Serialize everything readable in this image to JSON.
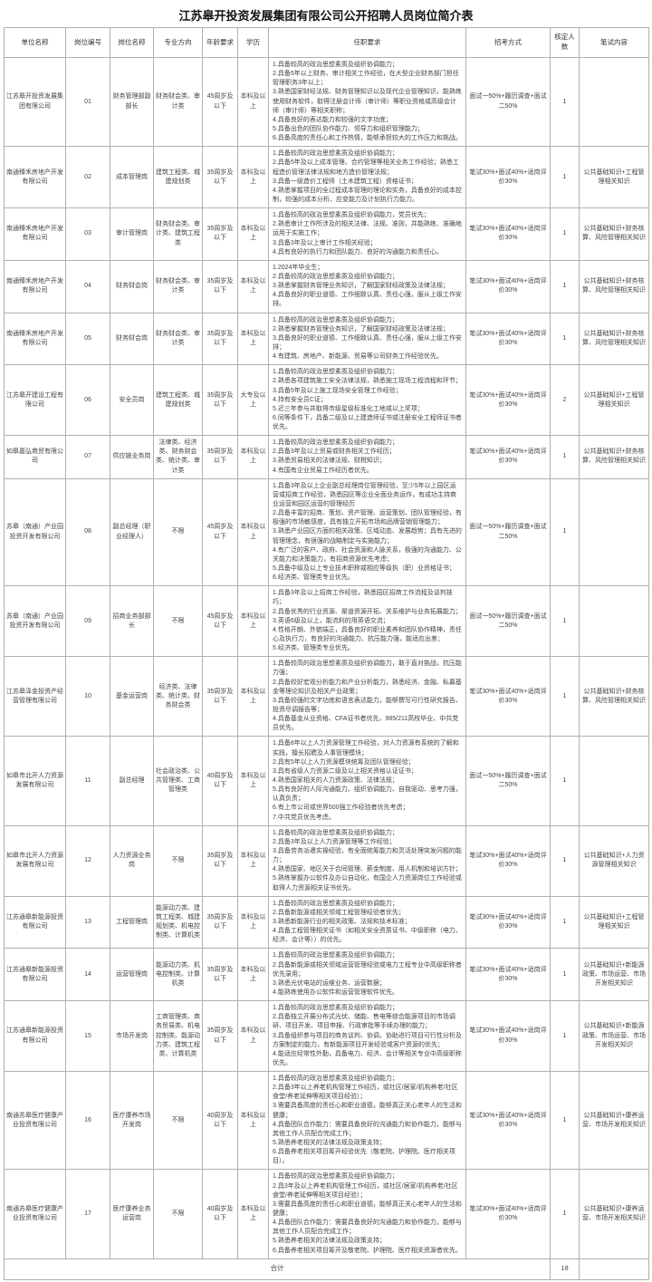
{
  "title": "江苏皋开投资发展集团有限公司公开招聘人员岗位简介表",
  "columns": [
    "单位名称",
    "岗位编号",
    "岗位名称",
    "专业方向",
    "年龄要求",
    "学历",
    "任职要求",
    "招考方式",
    "核定人数",
    "笔试内容"
  ],
  "rows": [
    {
      "company": "江苏皋开投资发展集团有限公司",
      "code": "01",
      "position": "财务管理部副部长",
      "major": "财务财会类、审计类",
      "age": "45周岁及以下",
      "education": "本科及以上",
      "requirements": "1.具备较高的政治思想素质及组织协调能力；\n2.具备5年以上财务、审计相关工作经验，在大型企业财务部门担任管理职务3年以上；\n3.熟悉国家财经法规、财务管理知识以及现代企业管理知识，能熟练使用财务软件，取得注册会计师（审计师）等职业资格或高级会计师（审计师）等相关职称；\n4.具备良好的表达能力和较强的文字功底；\n5.具备出色的团队协作能力、领导力和组织管理能力；\n6.具备高度的责任心和工作热情，能够承担较大的工作压力和挑战。",
      "method": "面试一50%+履历调查+面试二50%",
      "count": "1",
      "exam": ""
    },
    {
      "company": "南通臻禾房地产开发有限公司",
      "code": "02",
      "position": "成本管理岗",
      "major": "建筑工程类、城建规划类",
      "age": "35周岁及以下",
      "education": "本科及以上",
      "requirements": "1.具备较高的政治思想素质及组织协调能力；\n2.具备5年及以上成本管理、合约管理等相关业务工作经验；熟悉工程造价管理法律法规和地方造价管理法规；\n3.具备一级造价工程师（土木建筑工程）资格证书；\n4.熟悉掌握项目的全过程成本管理的理论和实务，具备良好的成本控制，较强的成本分析、应变能力及计划执行力能力。",
      "method": "笔试30%+面试40%+适岗评价30%",
      "count": "1",
      "exam": "公共基础知识+工程管理相关知识"
    },
    {
      "company": "南通臻禾房地产开发有限公司",
      "code": "03",
      "position": "审计管理岗",
      "major": "财务财会类、审计类、建筑工程类",
      "age": "35周岁及以下",
      "education": "本科及以上",
      "requirements": "1.具备较高的政治思想素质及组织协调能力，党员优先；\n2.熟悉审计工作所涉及的相关法律、法规、准则，并能熟练、准确地运用于实施工作；\n3.具备3年及以上审计工作相关经验；\n4.具有良好的执行力和团队能力、良好的沟通能力和责任心。",
      "method": "笔试30%+面试40%+适岗评价30%",
      "count": "1",
      "exam": "公共基础知识+财务核算、风险管理相关知识"
    },
    {
      "company": "南通臻禾房地产开发有限公司",
      "code": "04",
      "position": "财务财会岗",
      "major": "财务财会类、审计类",
      "age": "35周岁及以下",
      "education": "本科及以上",
      "requirements": "1.2024年毕业生；\n2.具备较高的政治思想素质及组织协调能力；\n3.熟悉掌握财务管理业务知识，了解国家财经政策及法律法规；\n4.具备良好的职业道德、工作细致认真、责任心强，服从上级工作安排。",
      "method": "笔试30%+面试40%+适岗评价30%",
      "count": "1",
      "exam": "公共基础知识+财务核算、风险管理相关知识"
    },
    {
      "company": "南通臻禾房地产开发有限公司",
      "code": "05",
      "position": "财务财会岗",
      "major": "财务财会类、审计类",
      "age": "35周岁及以下",
      "education": "本科及以上",
      "requirements": "1.具备较高的政治思想素质及组织协调能力；\n2.熟悉掌握财务管理业务知识，了解国家财经政策及法律法规；\n3.具备良好的职业道德、工作细致认真、责任心强，服从上级工作安排；\n4.有建筑、房地产、新能源、贸易等公司财务工作经验优先。",
      "method": "笔试30%+面试40%+适岗评价30%",
      "count": "1",
      "exam": "公共基础知识+财务核算、风险管理相关知识"
    },
    {
      "company": "江苏皋开建设工程有限公司",
      "code": "06",
      "position": "安全员岗",
      "major": "建筑工程类、城建规划类",
      "age": "35周岁及以下",
      "education": "大专及以上",
      "requirements": "1.具备较高的政治思想素质及组织协调能力；\n2.熟悉各项建筑施工安全法律法规，熟悉施工现场工程流程和环节；\n3.具备5年及以上施工现场安全管理工作经验；\n4.持有安全员C证；\n5.近三年参与并取得市级星级标准化工地或以上奖项；\n6.同等条件下，具备二级及以上建造师证书或注册安全工程师证书者优先。",
      "method": "笔试30%+面试40%+适岗评价30%",
      "count": "2",
      "exam": "公共基础知识+工程管理相关知识"
    },
    {
      "company": "如皋嘉弘商贸有限公司",
      "code": "07",
      "position": "供应链业务岗",
      "major": "法律类、经济类、财务财会类、统计类、审计类",
      "age": "35周岁及以下",
      "education": "本科及以上",
      "requirements": "1.具备较高的政治思想素质及组织协调能力；\n2.具备3年及以上贸易或财务相关工作经历；\n3.熟悉贸易相关的法律法规、财税知识；\n4.有国有企业贸易工作经历者优先。",
      "method": "笔试30%+面试40%+适岗评价30%",
      "count": "1",
      "exam": "公共基础知识+财务核算、风险管理相关知识"
    },
    {
      "company": "苏皋（南通）产业园投资开发有限公司",
      "code": "08",
      "position": "副总经理（职业经理人）",
      "major": "不限",
      "age": "45周岁及以下",
      "education": "本科及以上",
      "requirements": "1.具备3年及以上企业副总经理岗位管理经验，至少5年以上园区运营或招商工作经验，熟悉园区等企业全面业务运作，有成功主持商业运营和园区运营的管理经历\n2.具备丰富的招商、策划、资产管理、运营策划、团队管理经验，有极强的市场敏感度，具有独立开拓市场和品牌营销管理能力；\n3.熟悉产业园区方面的相关政策、区域动态、发展趋势；具有先进的管理理念，有很强的战略制定与实施能力；\n4.有广泛的客户、政府、社会资源和人脉关系，极强的沟通能力、公关能力和决策能力，有招商资源优先考虑；\n5.具备中级及以上专业技术职称或相应等级执（职）业资格证书；\n6.经济类、管理类专业优先。",
      "method": "面试一50%+履历调查+面试二50%",
      "count": "1",
      "exam": ""
    },
    {
      "company": "苏皋（南通）产业园投资开发有限公司",
      "code": "09",
      "position": "招商业务部部长",
      "major": "不限",
      "age": "45周岁及以下",
      "education": "本科及以上",
      "requirements": "1.具备3年及以上招商工作经验，熟悉园区招商工作流程及谈判技巧；\n2.具备优秀的行业资源、渠道资源开拓、关系维护与业务拓展能力；\n3.英语6级及以上，能流利的用英语交流；\n4.性格开朗、外貌端正，具备良好的职业素养和团队协作精神，责任心及执行力，有良好的沟通能力、抗压能力强，能适应出差；\n5.经济类、管理类专业优先。",
      "method": "面试一50%+履历调查+面试二50%",
      "count": "1",
      "exam": ""
    },
    {
      "company": "江苏皋泽金投资产经营管理有限公司",
      "code": "10",
      "position": "基金运营岗",
      "major": "经济类、法律类、统计类、财务财会类",
      "age": "35周岁及以下",
      "education": "本科及以上",
      "requirements": "1.具备较高的政治思想素质及组织协调能力，敢于直对挑战，抗压能力强；\n2.具备较好宏观分析能力和产业分析能力，熟悉经济、金融、私募基金等理论知识及相关产业政策；\n3.具备较强的文字功底和语言表达能力，能够撰写可行性研究报告、投资尽调报告等；\n4.具备基金从业资格、CFA证书者优先，985/211高校毕业、中共党员优先。",
      "method": "笔试30%+面试40%+适岗评价30%",
      "count": "1",
      "exam": "公共基础知识+财务核算、风险管理相关知识"
    },
    {
      "company": "如皋市北开人力资源发展有限公司",
      "code": "11",
      "position": "副总经理",
      "major": "社会政治类、公共管理类、工商管理类",
      "age": "40周岁及以下",
      "education": "本科及以上",
      "requirements": "1.具备8年以上人力资源管理工作经验，对人力资源有系统的了解和实践，擅长招聘及人事管理模块；\n2.具有5年以上人力资源模块统筹及团队管理经验；\n3.具有省级人力资源二级及以上相关资格认证证书；\n4.熟悉国家相关的人力资源政策、法律法规；\n5.具有良好的人际沟通能力、组织协调能力、自我驱动、思考力强，认真负责；\n6.有上市公司或世界500强工作经验者优先考虑；\n7.中共党员优先考虑。",
      "method": "面试一50%+履历调查+面试二50%",
      "count": "1",
      "exam": ""
    },
    {
      "company": "如皋市北开人力资源发展有限公司",
      "code": "12",
      "position": "人力资源业务岗",
      "major": "不限",
      "age": "35周岁及以下",
      "education": "本科及以上",
      "requirements": "1.具备较高的政治思想素质及组织协调能力；\n2.具备3年及以上人力资源管理等工作经验；\n3.具备劳务派遣实操经验，有全面统筹能力和灵活处理突发问题的能力；\n4.熟悉国家、地区关于合同管理、薪金制度、用人机制和培训方针；\n5.熟练掌握办公软件及办公自动化，有国企人力资源岗位工作经验或取得人力资源相关证书优先。",
      "method": "笔试30%+面试40%+适岗评价30%",
      "count": "1",
      "exam": "公共基础知识+人力资源管理相关知识"
    },
    {
      "company": "江苏通皋新能源投资有限公司",
      "code": "13",
      "position": "工程管理岗",
      "major": "能源动力类、建筑工程类、城建规划类、机电控制类、计算机类",
      "age": "35周岁及以下",
      "education": "本科及以上",
      "requirements": "1.具备较高的政治思想素质及组织协调能力；\n2.具备新能源或相关领域工程管理经验者优先；\n3.熟悉新能源行业的相关政策、法规和技术标准；\n4.具备工程管理相关证书（如相关安全资质证书、中级职称（电力、经济、会计等））的优先。",
      "method": "笔试30%+面试40%+适岗评价30%",
      "count": "1",
      "exam": "公共基础知识+工程管理相关知识"
    },
    {
      "company": "江苏通皋新能源投资有限公司",
      "code": "14",
      "position": "运营管理岗",
      "major": "能源动力类、机电控制类、计算机类",
      "age": "35周岁及以下",
      "education": "本科及以上",
      "requirements": "1.具备较高的政治思想素质及组织协调能力；\n2.具备新能源或相关领域运营管理经验或电力工程专业中高级职称者优先录用；\n3.熟悉光伏电站的运维业务、运营数据；\n4.能熟练使用办公软件和运营管理软件优先。",
      "method": "笔试30%+面试40%+适岗评价30%",
      "count": "1",
      "exam": "公共基础知识+新能源政策、市场运营、市场开发相关知识"
    },
    {
      "company": "江苏通皋新能源投资有限公司",
      "code": "15",
      "position": "市场开发岗",
      "major": "工商管理类、商务贸易类、机电控制类、能源动力类、建筑工程类、计算机类",
      "age": "35周岁及以下",
      "education": "本科及以上",
      "requirements": "1.具备较高的政治思想素质及组织协调能力；\n2.具备独立开展分布式光伏、储能、售电等综合能源项目的市场调研、项目开发、项目申报、行政审批等手续办理的能力；\n3.具备组织参与项目的商务谈判、协调，协助进行项目可行性分析及方案制定的能力，有新能源项目开发经验或客户资源的优先；\n4.能适应经常性外勤，具备电力、经济、会计等相关专业中高级职称优先。",
      "method": "笔试30%+面试40%+适岗评价30%",
      "count": "1",
      "exam": "公共基础知识+新能源政策、市场运营、市场开发相关知识"
    },
    {
      "company": "南通苏皋医疗健康产业投资有限公司",
      "code": "16",
      "position": "医疗康养市场开发岗",
      "major": "不限",
      "age": "40周岁及以下",
      "education": "本科及以上",
      "requirements": "1.具备较高的政治思想素质及组织协调能力；\n2.具备3年以上养老机构管理工作经历，或社区/居家/机构养老/社区食堂/养老延伸等相关项目经验）；\n3.需要具备高度的责任心和职业道德，能够真正关心老年人的生活和健康；\n4.具备团队合作能力：需要具备良好的沟通能力和协作能力，能够与其他工作人员配合完成工作；\n5.熟悉养老相关的法律法规及政策支持；\n6.具备养老相关项目筹开经验优先（敬老院、护理院、医疗相关项目）。",
      "method": "笔试30%+面试40%+适岗评价30%",
      "count": "1",
      "exam": "公共基础知识+康养运营、市场开发相关知识"
    },
    {
      "company": "南通苏皋医疗健康产业投资有限公司",
      "code": "17",
      "position": "医疗康养业务运营岗",
      "major": "不限",
      "age": "40周岁及以下",
      "education": "本科及以上",
      "requirements": "1.具备较高的政治思想素质及组织协调能力；\n2.具3年及以上养老机构管理工作经历，或社区/居家/机构养老/社区食堂/养老延伸等相关项目经验）；\n3.需要具备高度的责任心和职业道德，能够真正关心老年人的生活和健康；\n4.具备团队合作能力：需要具备良好的沟通能力和协作能力，能够与其他工作人员配合完成工作；\n5.熟悉养老相关的法律法规及政策支持；\n6.具备养老相关项目筹开及敬老院、护理院、医疗相关资源者优先。",
      "method": "笔试30%+面试40%+适岗评价30%",
      "count": "1",
      "exam": "公共基础知识+康养运营、市场开发相关知识"
    }
  ],
  "footer": {
    "label": "合计",
    "total": "18",
    "exam": ""
  }
}
